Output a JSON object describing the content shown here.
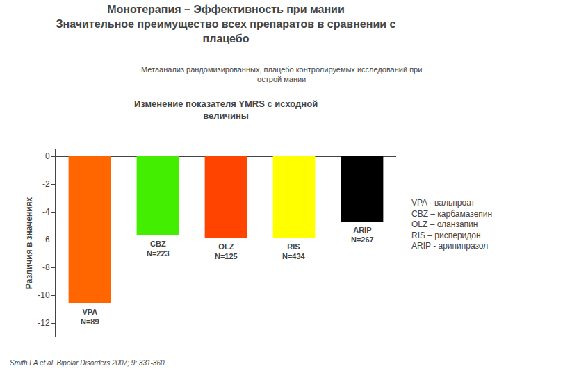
{
  "chart_data": {
    "type": "bar",
    "title": "Монотерапия – Эффективность при мании\nЗначительное преимущество всех препаратов в сравнении с\nплацебо",
    "subtitle": "Метаанализ рандомизированных, плацебо контролируемых исследований при\nострой мании",
    "annotations": [
      "Изменение показателя YMRS с исходной\nвеличины",
      "VPA - вальпроат\nCBZ – карбамазепин\nOLZ – оланзапин\nRIS – рисперидон\nARIP - арипипразол",
      "Smith LA et al. Bipolar Disorders 2007; 9: 331-360."
    ],
    "ylabel": "Различия в значениях",
    "categories": [
      "VPA",
      "CBZ",
      "OLZ",
      "RIS",
      "ARIP"
    ],
    "values": [
      -10.6,
      -5.7,
      -5.9,
      -5.9,
      -4.7
    ],
    "bar_labels": [
      "N=89",
      "N=223",
      "N=125",
      "N=434",
      "N=267"
    ],
    "colors": [
      "#FF6600",
      "#44EE00",
      "#FF4400",
      "#FFFF00",
      "#000000"
    ],
    "ylim": [
      -13,
      0.5
    ],
    "yticks": [
      0,
      -2,
      -4,
      -6,
      -8,
      -10,
      -12
    ],
    "grid": false,
    "tick_labels": "y",
    "data_labels": false
  }
}
